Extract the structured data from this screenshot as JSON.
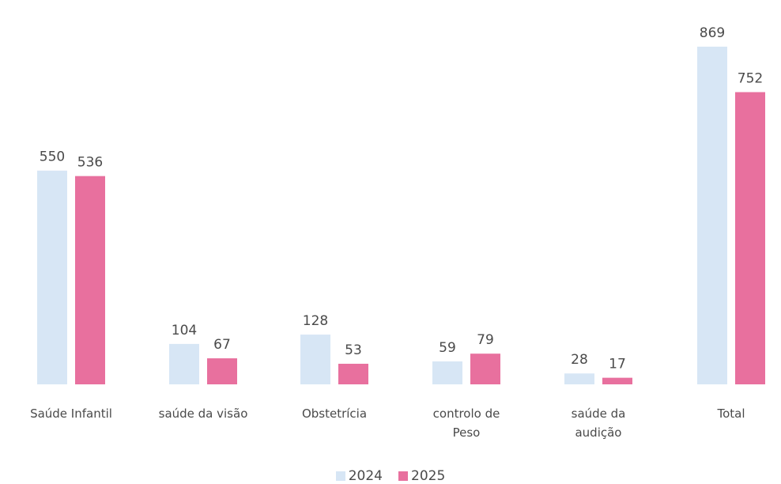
{
  "chart_data": {
    "type": "bar",
    "categories": [
      [
        "Saúde Infantil"
      ],
      [
        "saúde da visão"
      ],
      [
        "Obstetrícia"
      ],
      [
        "controlo de",
        "Peso"
      ],
      [
        "saúde da",
        "audição"
      ],
      [
        "Total"
      ]
    ],
    "series": [
      {
        "name": "2024",
        "color": "#d7e6f5",
        "values": [
          550,
          104,
          128,
          59,
          28,
          869
        ]
      },
      {
        "name": "2025",
        "color": "#e8709e",
        "values": [
          536,
          67,
          53,
          79,
          17,
          752
        ]
      }
    ],
    "ylim": [
      0,
      869
    ],
    "grid": false,
    "legend": "bottom-center"
  }
}
